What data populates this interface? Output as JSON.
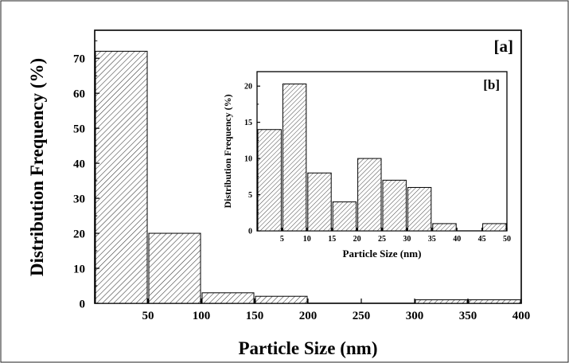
{
  "chart_data": [
    {
      "id": "a",
      "type": "bar",
      "panel_label": "[a]",
      "xlabel": "Particle Size (nm)",
      "ylabel": "Distribution Frequency (%)",
      "x_ticks": [
        "50",
        "100",
        "150",
        "200",
        "250",
        "300",
        "350",
        "400"
      ],
      "y_ticks": [
        "0",
        "10",
        "20",
        "30",
        "40",
        "50",
        "60",
        "70"
      ],
      "xlim": [
        0,
        400
      ],
      "ylim": [
        0,
        78
      ],
      "bins": [
        {
          "x0": 0,
          "x1": 50,
          "value": 72
        },
        {
          "x0": 50,
          "x1": 100,
          "value": 20
        },
        {
          "x0": 100,
          "x1": 150,
          "value": 3
        },
        {
          "x0": 150,
          "x1": 200,
          "value": 2
        },
        {
          "x0": 300,
          "x1": 350,
          "value": 1
        },
        {
          "x0": 350,
          "x1": 400,
          "value": 1
        }
      ],
      "grid": false,
      "fill": "diagonal hatch"
    },
    {
      "id": "b",
      "type": "bar",
      "panel_label": "[b]",
      "xlabel": "Particle Size (nm)",
      "ylabel": "Distribution Frequency (%)",
      "x_ticks": [
        "5",
        "10",
        "15",
        "20",
        "25",
        "30",
        "35",
        "40",
        "45",
        "50"
      ],
      "y_ticks": [
        "0",
        "5",
        "10",
        "15",
        "20"
      ],
      "xlim": [
        0,
        50
      ],
      "ylim": [
        0,
        22
      ],
      "bins": [
        {
          "x0": 0,
          "x1": 5,
          "value": 14
        },
        {
          "x0": 5,
          "x1": 10,
          "value": 20.3
        },
        {
          "x0": 10,
          "x1": 15,
          "value": 8
        },
        {
          "x0": 15,
          "x1": 20,
          "value": 4
        },
        {
          "x0": 20,
          "x1": 25,
          "value": 10
        },
        {
          "x0": 25,
          "x1": 30,
          "value": 7
        },
        {
          "x0": 30,
          "x1": 35,
          "value": 6
        },
        {
          "x0": 35,
          "x1": 40,
          "value": 1
        },
        {
          "x0": 45,
          "x1": 50,
          "value": 1
        }
      ],
      "grid": false,
      "fill": "diagonal hatch",
      "placement": "inset top-right"
    }
  ]
}
